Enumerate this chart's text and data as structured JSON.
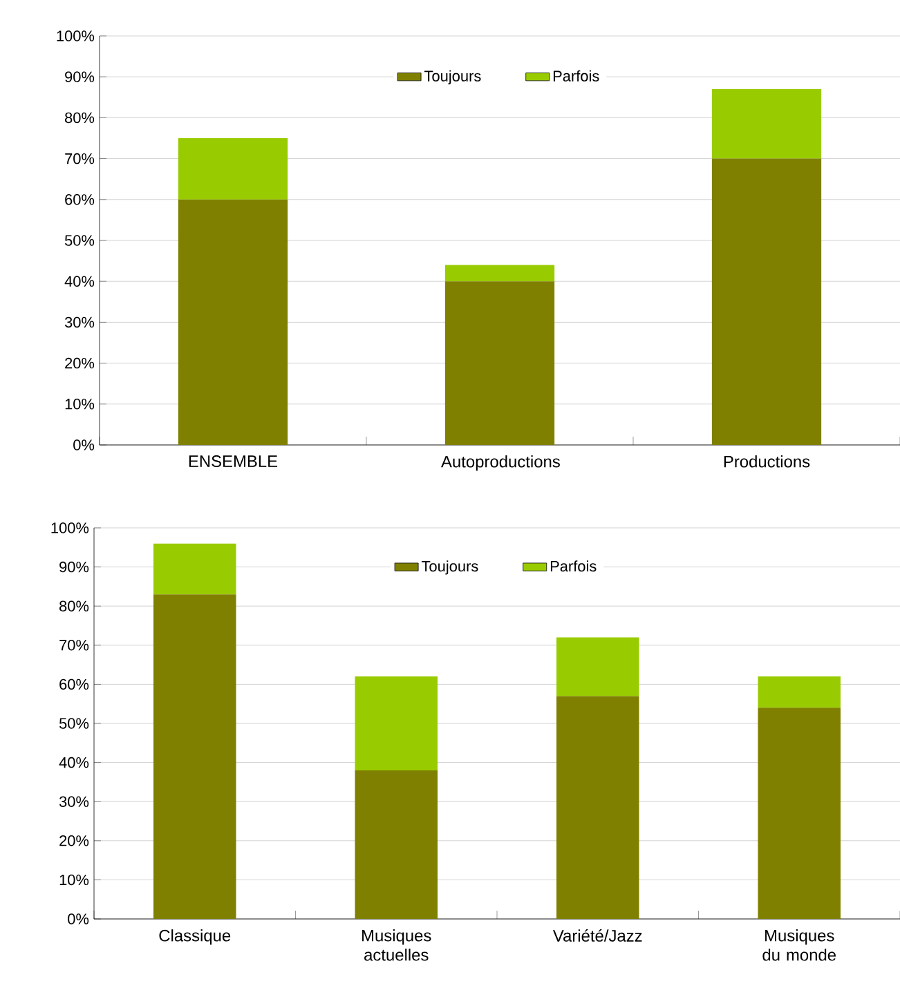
{
  "chart_data": [
    {
      "type": "bar",
      "stacked": true,
      "categories": [
        "ENSEMBLE",
        "Autoproductions",
        "Productions"
      ],
      "series": [
        {
          "name": "Toujours",
          "color": "#808000",
          "values": [
            60,
            40,
            70
          ]
        },
        {
          "name": "Parfois",
          "color": "#99cc00",
          "values": [
            15,
            4,
            17
          ]
        }
      ],
      "ylim": [
        0,
        100
      ],
      "yticks": [
        {
          "value": 0,
          "label": "0%"
        },
        {
          "value": 10,
          "label": "10%"
        },
        {
          "value": 20,
          "label": "20%"
        },
        {
          "value": 30,
          "label": "30%"
        },
        {
          "value": 40,
          "label": "40%"
        },
        {
          "value": 50,
          "label": "50%"
        },
        {
          "value": 60,
          "label": "60%"
        },
        {
          "value": 70,
          "label": "70%"
        },
        {
          "value": 80,
          "label": "80%"
        },
        {
          "value": 90,
          "label": "90%"
        },
        {
          "value": 100,
          "label": "100%"
        }
      ],
      "grid": "y",
      "legend": "top"
    },
    {
      "type": "bar",
      "stacked": true,
      "categories": [
        "Classique",
        "Musiques actuelles",
        "Variété/Jazz",
        "Musiques du monde"
      ],
      "series": [
        {
          "name": "Toujours",
          "color": "#808000",
          "values": [
            83,
            38,
            57,
            54
          ]
        },
        {
          "name": "Parfois",
          "color": "#99cc00",
          "values": [
            13,
            24,
            15,
            8
          ]
        }
      ],
      "ylim": [
        0,
        100
      ],
      "yticks": [
        {
          "value": 0,
          "label": "0%"
        },
        {
          "value": 10,
          "label": "10%"
        },
        {
          "value": 20,
          "label": "20%"
        },
        {
          "value": 30,
          "label": "30%"
        },
        {
          "value": 40,
          "label": "40%"
        },
        {
          "value": 50,
          "label": "50%"
        },
        {
          "value": 60,
          "label": "60%"
        },
        {
          "value": 70,
          "label": "70%"
        },
        {
          "value": 80,
          "label": "80%"
        },
        {
          "value": 90,
          "label": "90%"
        },
        {
          "value": 100,
          "label": "100%"
        }
      ],
      "grid": "y",
      "legend": "top"
    }
  ]
}
